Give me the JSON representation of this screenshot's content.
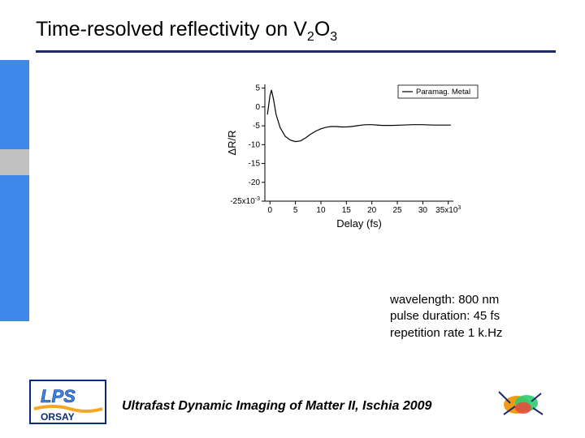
{
  "title": {
    "prefix": "Time-resolved reflectivity on V",
    "sub1": "2",
    "mid": "O",
    "sub2": "3"
  },
  "sidebar_colors": {
    "blue": "#3d88e8",
    "gray": "#c0c0c0"
  },
  "chart": {
    "type": "line",
    "xlabel": "Delay (fs)",
    "ylabel": "ΔR/R",
    "xlim": [
      -1000,
      36000
    ],
    "ylim": [
      -25,
      6
    ],
    "xticks": [
      0,
      5,
      10,
      15,
      20,
      25,
      30,
      35
    ],
    "xtick_scale_suffix": "x10",
    "xtick_scale_exp": "3",
    "yticks": [
      -25,
      -20,
      -15,
      -10,
      -5,
      0,
      5
    ],
    "ytick_scale_suffix": "x10",
    "ytick_scale_exp": "-3",
    "axis_color": "#000000",
    "tick_fontsize": 10,
    "label_fontsize": 13,
    "line_color": "#000000",
    "line_width": 1.2,
    "legend_label": "Paramag. Metal",
    "legend_line_color": "#000000",
    "legend_bg": "#ffffff",
    "legend_border": "#000000",
    "data": [
      [
        -500,
        -2
      ],
      [
        0,
        3
      ],
      [
        300,
        4.5
      ],
      [
        700,
        2
      ],
      [
        1200,
        -2
      ],
      [
        2000,
        -5.5
      ],
      [
        3000,
        -7.8
      ],
      [
        4000,
        -8.8
      ],
      [
        5000,
        -9.2
      ],
      [
        6000,
        -9.0
      ],
      [
        7000,
        -8.2
      ],
      [
        8000,
        -7.2
      ],
      [
        9000,
        -6.4
      ],
      [
        10000,
        -5.8
      ],
      [
        11000,
        -5.4
      ],
      [
        12000,
        -5.2
      ],
      [
        13000,
        -5.2
      ],
      [
        14000,
        -5.3
      ],
      [
        15000,
        -5.3
      ],
      [
        16000,
        -5.2
      ],
      [
        17000,
        -5.0
      ],
      [
        18000,
        -4.8
      ],
      [
        19000,
        -4.7
      ],
      [
        20000,
        -4.7
      ],
      [
        22000,
        -4.9
      ],
      [
        24000,
        -4.9
      ],
      [
        26000,
        -4.8
      ],
      [
        28000,
        -4.7
      ],
      [
        30000,
        -4.7
      ],
      [
        32000,
        -4.8
      ],
      [
        34000,
        -4.8
      ],
      [
        35500,
        -4.8
      ]
    ]
  },
  "params": {
    "line1_label": "wavelength: ",
    "line1_value": "800 nm",
    "line2_label": "pulse duration: ",
    "line2_value": "45 fs",
    "line3_label": "repetition rate ",
    "line3_value": "1 k.Hz"
  },
  "footer": "Ultrafast Dynamic Imaging of Matter II, Ischia 2009",
  "logo_left": {
    "text_top": "LPS",
    "text_bottom": "ORSAY",
    "border_color": "#0a2a7a",
    "fill_top": "#3d88e8",
    "fill_bottom": "#f6a623"
  },
  "logo_right": {
    "colors": [
      "#f39c12",
      "#2ecc71",
      "#e74c3c",
      "#1a2a6c"
    ]
  }
}
